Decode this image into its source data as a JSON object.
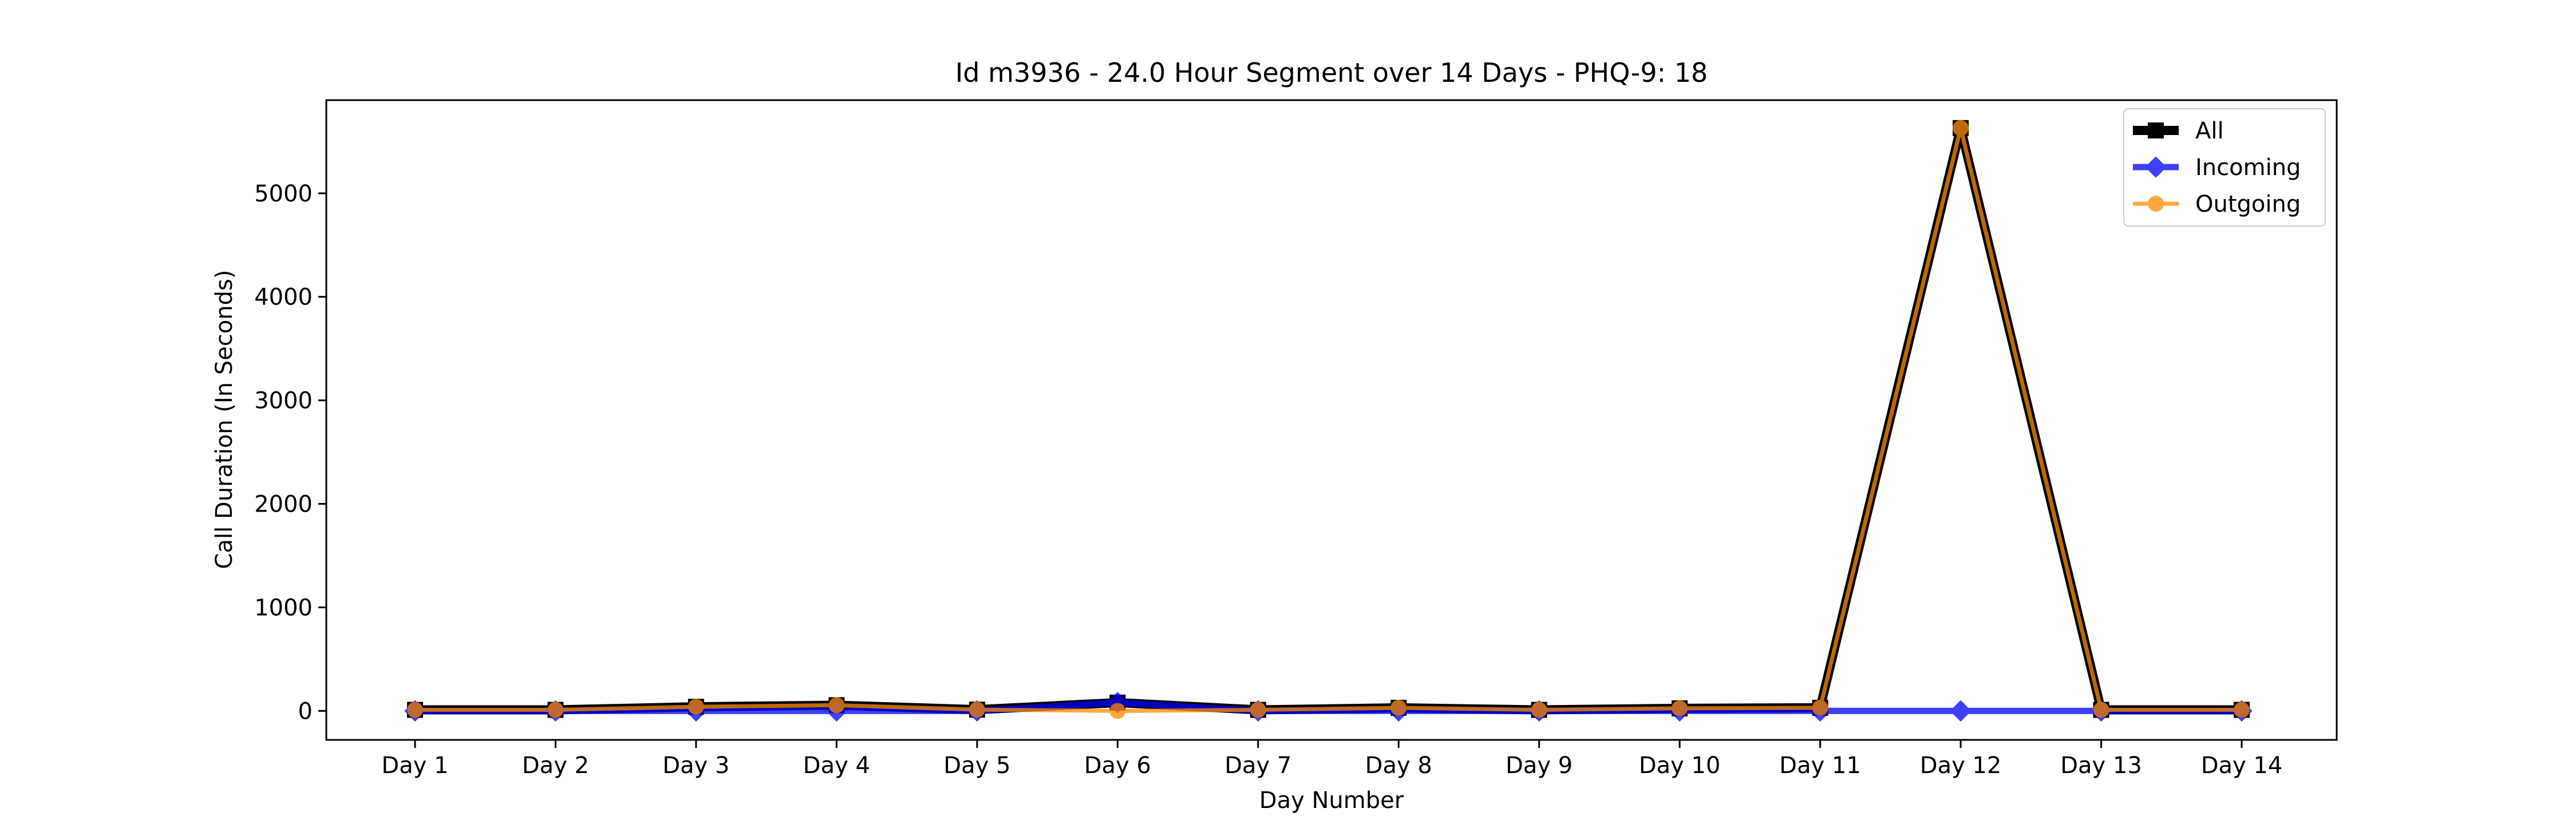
{
  "chart_data": {
    "type": "line",
    "title": "Id m3936 - 24.0 Hour Segment over 14 Days - PHQ-9: 18",
    "xlabel": "Day Number",
    "ylabel": "Call Duration (In Seconds)",
    "categories": [
      "Day 1",
      "Day 2",
      "Day 3",
      "Day 4",
      "Day 5",
      "Day 6",
      "Day 7",
      "Day 8",
      "Day 9",
      "Day 10",
      "Day 11",
      "Day 12",
      "Day 13",
      "Day 14"
    ],
    "yticks": [
      0,
      1000,
      2000,
      3000,
      4000,
      5000
    ],
    "ylim": [
      -280,
      5900
    ],
    "grid": false,
    "legend_position": "top-right",
    "series": [
      {
        "name": "All",
        "color": "#000000",
        "marker": "square",
        "values": [
          10,
          10,
          40,
          55,
          12,
          80,
          10,
          30,
          10,
          25,
          30,
          5630,
          10,
          10
        ]
      },
      {
        "name": "Incoming",
        "color": "#0000ff",
        "marker": "diamond",
        "values": [
          0,
          0,
          0,
          0,
          0,
          80,
          0,
          0,
          0,
          0,
          0,
          0,
          0,
          0
        ]
      },
      {
        "name": "Outgoing",
        "color": "#ff8c00",
        "marker": "circle",
        "values": [
          10,
          10,
          40,
          55,
          12,
          0,
          10,
          30,
          10,
          25,
          30,
          5630,
          10,
          10
        ]
      }
    ]
  }
}
